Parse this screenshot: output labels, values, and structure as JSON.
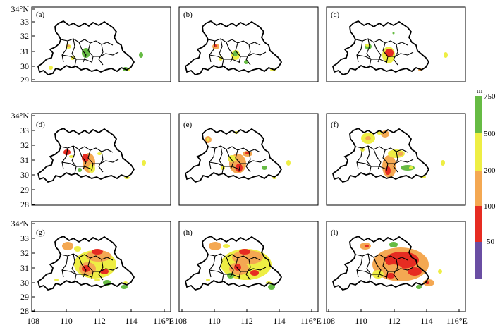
{
  "figure": {
    "panel_labels": [
      "(a)",
      "(b)",
      "(c)",
      "(d)",
      "(e)",
      "(f)",
      "(g)",
      "(h)",
      "(i)"
    ],
    "y_tick_labels": [
      "34°N",
      "33",
      "32",
      "31",
      "30",
      "29",
      "28"
    ],
    "x_tick_labels": [
      "108",
      "110",
      "112",
      "114",
      "116°E"
    ]
  },
  "colorbar": {
    "unit": "m",
    "tick_labels": [
      "750",
      "500",
      "200",
      "100",
      "50"
    ],
    "colors": [
      "#66bb44",
      "#eeee44",
      "#f4a852",
      "#e62c22",
      "#6a4ea3"
    ]
  }
}
